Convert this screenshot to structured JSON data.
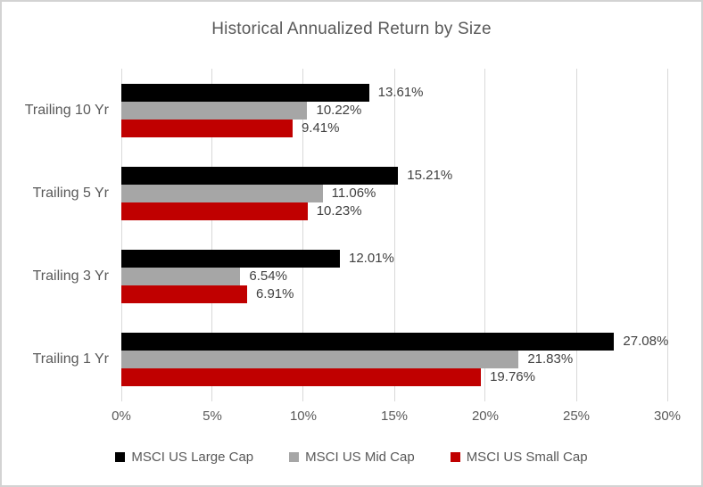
{
  "chart_data": {
    "type": "bar",
    "orientation": "horizontal",
    "title": "Historical Annualized Return by Size",
    "categories": [
      "Trailing 10 Yr",
      "Trailing 5 Yr",
      "Trailing 3 Yr",
      "Trailing 1 Yr"
    ],
    "series": [
      {
        "name": "MSCI US Large Cap",
        "color": "#000000",
        "values": [
          13.61,
          15.21,
          12.01,
          27.08
        ]
      },
      {
        "name": "MSCI US Mid Cap",
        "color": "#A6A6A6",
        "values": [
          10.22,
          11.06,
          6.54,
          21.83
        ]
      },
      {
        "name": "MSCI US Small Cap",
        "color": "#C00000",
        "values": [
          9.41,
          10.23,
          6.91,
          19.76
        ]
      }
    ],
    "data_labels": [
      [
        "13.61%",
        "10.22%",
        "9.41%"
      ],
      [
        "15.21%",
        "11.06%",
        "10.23%"
      ],
      [
        "12.01%",
        "6.54%",
        "6.91%"
      ],
      [
        "27.08%",
        "21.83%",
        "19.76%"
      ]
    ],
    "x_ticks": [
      "0%",
      "5%",
      "10%",
      "15%",
      "20%",
      "25%",
      "30%"
    ],
    "xlim": [
      0,
      30
    ],
    "grid": "vertical",
    "legend_position": "bottom",
    "colors": {
      "title_text": "#595959",
      "axis_text": "#595959",
      "data_label_text": "#404040",
      "gridline": "#D9D9D9",
      "frame_border": "#D3D3D3",
      "background": "#FFFFFF"
    }
  }
}
